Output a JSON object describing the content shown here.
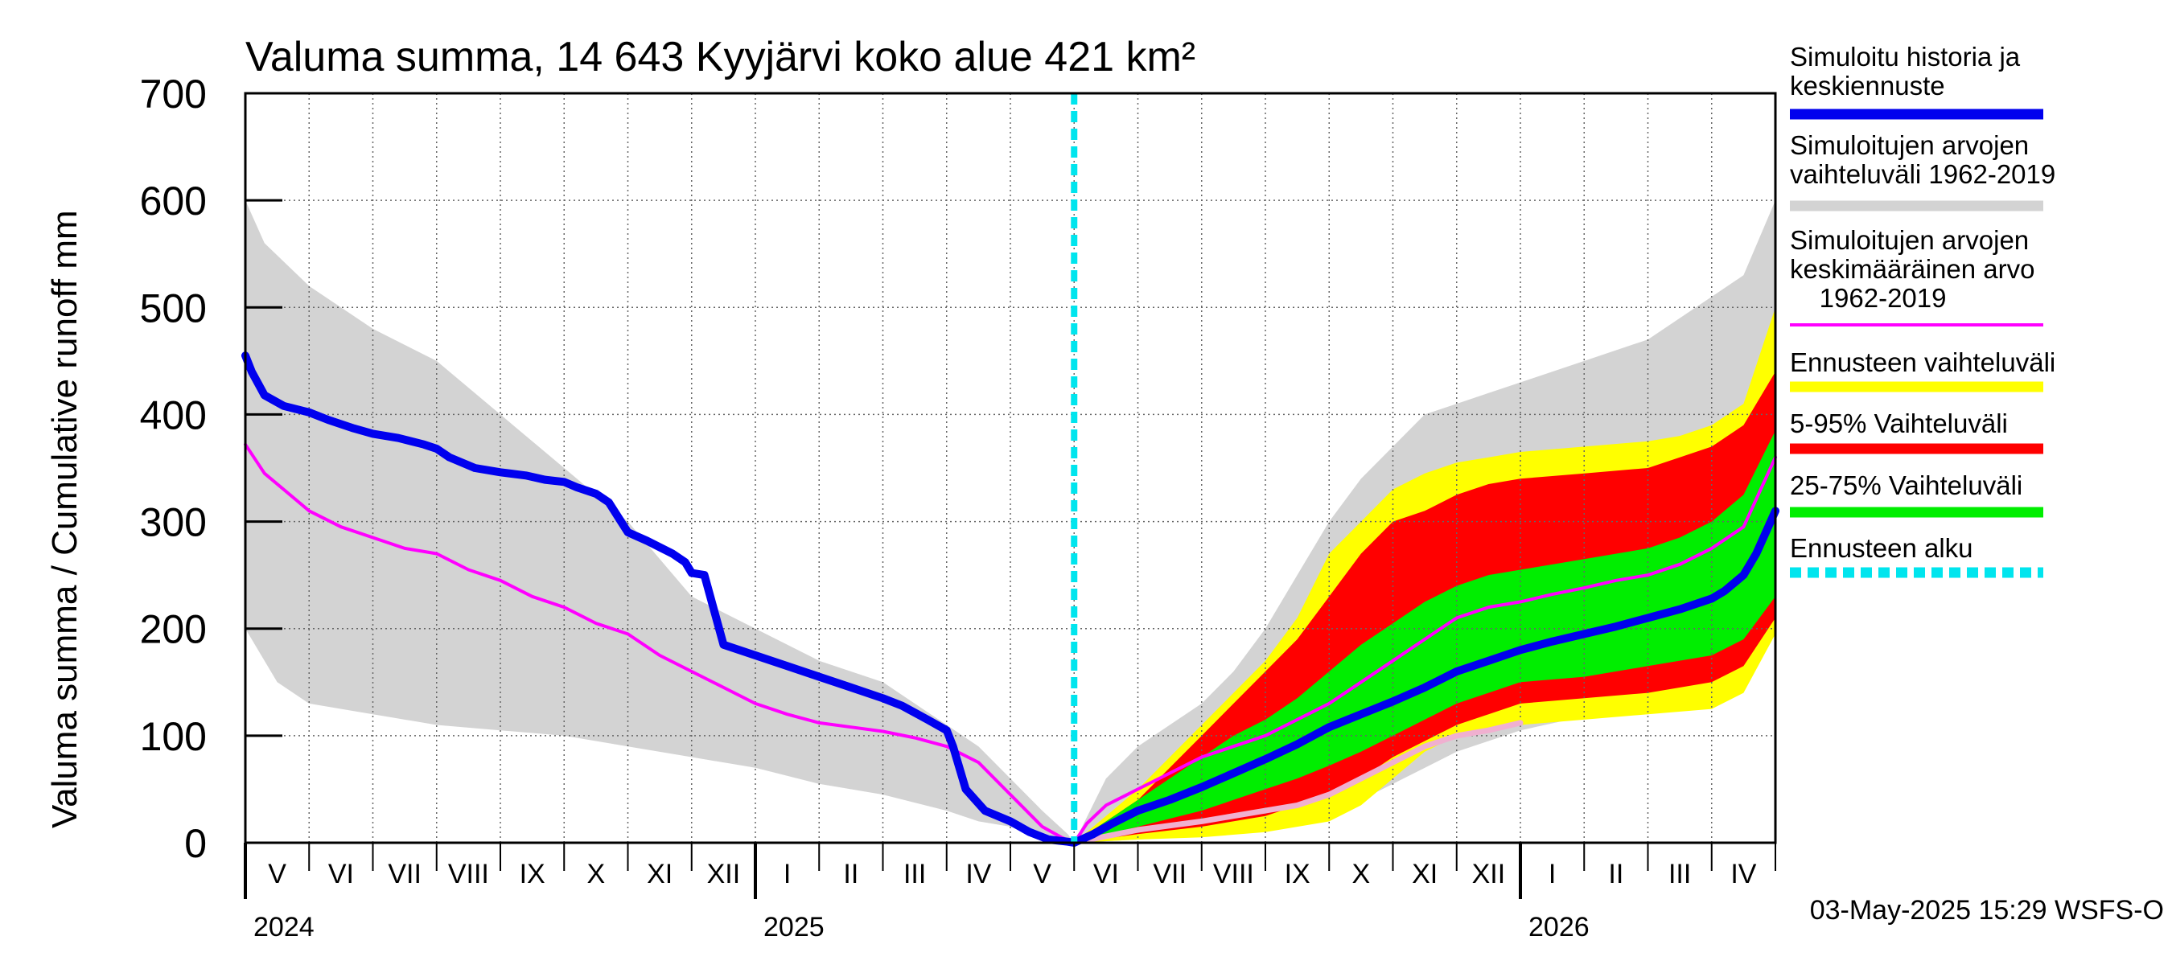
{
  "chart_data": {
    "type": "area",
    "title": "Valuma summa, 14 643 Kyyjärvi koko alue 421 km²",
    "ylabel": "Valuma summa / Cumulative runoff    mm",
    "xlabel": "",
    "ylim": [
      0,
      700
    ],
    "yticks": [
      0,
      100,
      200,
      300,
      400,
      500,
      600,
      700
    ],
    "grid": true,
    "legend_position": "right",
    "x_unit": "months since 2024-04-01",
    "xlim": [
      0,
      24
    ],
    "forecast_start": 13.0,
    "month_labels": [
      {
        "label": "V",
        "x": 0.5
      },
      {
        "label": "VI",
        "x": 1.5
      },
      {
        "label": "VII",
        "x": 2.5
      },
      {
        "label": "VIII",
        "x": 3.5
      },
      {
        "label": "IX",
        "x": 4.5
      },
      {
        "label": "X",
        "x": 5.5
      },
      {
        "label": "XI",
        "x": 6.5
      },
      {
        "label": "XII",
        "x": 7.5
      },
      {
        "label": "I",
        "x": 8.5
      },
      {
        "label": "II",
        "x": 9.5
      },
      {
        "label": "III",
        "x": 10.5
      },
      {
        "label": "IV",
        "x": 11.5
      },
      {
        "label": "V",
        "x": 12.5
      },
      {
        "label": "VI",
        "x": 13.5
      },
      {
        "label": "VII",
        "x": 14.5
      },
      {
        "label": "VIII",
        "x": 15.5
      },
      {
        "label": "IX",
        "x": 16.5
      },
      {
        "label": "X",
        "x": 17.5
      },
      {
        "label": "XI",
        "x": 18.5
      },
      {
        "label": "XII",
        "x": 19.5
      },
      {
        "label": "I",
        "x": 20.5
      },
      {
        "label": "II",
        "x": 21.5
      },
      {
        "label": "III",
        "x": 22.5
      },
      {
        "label": "IV",
        "x": 23.5
      }
    ],
    "year_labels": [
      {
        "label": "2024",
        "x": 0.0
      },
      {
        "label": "2025",
        "x": 8.0
      },
      {
        "label": "2026",
        "x": 20.0
      }
    ],
    "legend": [
      {
        "key": "history",
        "label": "Simuloitu historia ja keskiennuste",
        "color": "#0000ee"
      },
      {
        "key": "sim_range",
        "label": "Simuloitujen arvojen vaihteluväli 1962-2019",
        "color": "#d3d3d3"
      },
      {
        "key": "sim_mean",
        "label": "Simuloitujen arvojen keskimääräinen arvo    1962-2019",
        "color": "#ff00ff"
      },
      {
        "key": "fc_range",
        "label": "Ennusteen vaihteluväli",
        "color": "#ffff00"
      },
      {
        "key": "p5_95",
        "label": "5-95% Vaihteluväli",
        "color": "#ff0000"
      },
      {
        "key": "p25_75",
        "label": "25-75% Vaihteluväli",
        "color": "#00ee00"
      },
      {
        "key": "fc_start",
        "label": "Ennusteen alku",
        "color": "#00e5ee"
      }
    ],
    "series": [
      {
        "name": "Simuloitujen arvojen vaihteluväli 1962-2019 (ylä)",
        "x": [
          0,
          0.3,
          1,
          2,
          3,
          4,
          5,
          6,
          7,
          8,
          9,
          10,
          10.5,
          11,
          11.5,
          12,
          12.5,
          12.9,
          13,
          13.5,
          14,
          14.5,
          15,
          15.5,
          16,
          16.5,
          17,
          17.5,
          18,
          18.5,
          19,
          19.5,
          20,
          21,
          22,
          22.5,
          23,
          23.5,
          24
        ],
        "values": [
          600,
          560,
          520,
          480,
          450,
          400,
          350,
          300,
          230,
          200,
          170,
          150,
          130,
          110,
          90,
          60,
          30,
          8,
          0,
          60,
          90,
          110,
          130,
          160,
          200,
          250,
          300,
          340,
          370,
          400,
          410,
          420,
          430,
          450,
          470,
          490,
          510,
          530,
          600
        ]
      },
      {
        "name": "Simuloitujen arvojen vaihteluväli 1962-2019 (ala)",
        "x": [
          0,
          0.5,
          1,
          2,
          3,
          4,
          5,
          6,
          7,
          8,
          9,
          10,
          11,
          11.5,
          12,
          12.5,
          12.9,
          13,
          14,
          15,
          16,
          17,
          18,
          19,
          20,
          21,
          22,
          22.5,
          23,
          23.5,
          24
        ],
        "values": [
          200,
          150,
          130,
          120,
          110,
          105,
          100,
          90,
          80,
          70,
          55,
          45,
          30,
          20,
          15,
          8,
          2,
          0,
          3,
          7,
          12,
          25,
          55,
          85,
          105,
          118,
          125,
          128,
          135,
          150,
          200
        ]
      },
      {
        "name": "Ennusteen vaihteluväli (ylä)",
        "x": [
          13,
          13.5,
          14,
          14.5,
          15,
          15.5,
          16,
          16.5,
          17,
          17.5,
          18,
          18.5,
          19,
          19.5,
          20,
          21,
          22,
          22.5,
          23,
          23.5,
          24
        ],
        "values": [
          0,
          25,
          50,
          80,
          110,
          140,
          170,
          210,
          270,
          300,
          330,
          345,
          355,
          360,
          365,
          370,
          375,
          380,
          390,
          410,
          500
        ]
      },
      {
        "name": "Ennusteen vaihteluväli (ala)",
        "x": [
          13,
          14,
          15,
          16,
          17,
          17.5,
          18,
          18.5,
          19,
          20,
          21,
          22,
          23,
          23.5,
          24
        ],
        "values": [
          0,
          3,
          5,
          10,
          20,
          35,
          60,
          85,
          100,
          110,
          115,
          120,
          125,
          140,
          195
        ]
      },
      {
        "name": "5-95% Vaihteluväli (ylä)",
        "x": [
          13,
          13.5,
          14,
          14.5,
          15,
          15.5,
          16,
          16.5,
          17,
          17.5,
          18,
          18.5,
          19,
          19.5,
          20,
          21,
          22,
          22.5,
          23,
          23.5,
          24
        ],
        "values": [
          0,
          20,
          40,
          70,
          100,
          130,
          160,
          190,
          230,
          270,
          300,
          310,
          325,
          335,
          340,
          345,
          350,
          360,
          370,
          390,
          440
        ]
      },
      {
        "name": "5-95% Vaihteluväli (ala)",
        "x": [
          13,
          14,
          15,
          16,
          16.5,
          17,
          17.5,
          18,
          18.5,
          19,
          19.5,
          20,
          21,
          22,
          23,
          23.5,
          24
        ],
        "values": [
          0,
          8,
          15,
          25,
          35,
          45,
          60,
          80,
          95,
          110,
          120,
          130,
          135,
          140,
          150,
          165,
          210
        ]
      },
      {
        "name": "25-75% Vaihteluväli (ylä)",
        "x": [
          13,
          13.5,
          14,
          14.5,
          15,
          15.5,
          16,
          16.5,
          17,
          17.5,
          18,
          18.5,
          19,
          19.5,
          20,
          21,
          22,
          22.5,
          23,
          23.5,
          24
        ],
        "values": [
          0,
          20,
          40,
          60,
          80,
          100,
          115,
          135,
          160,
          185,
          205,
          225,
          240,
          250,
          255,
          265,
          275,
          285,
          300,
          325,
          385
        ]
      },
      {
        "name": "25-75% Vaihteluväli (ala)",
        "x": [
          13,
          14,
          15,
          16,
          16.5,
          17,
          17.5,
          18,
          18.5,
          19,
          19.5,
          20,
          21,
          22,
          23,
          23.5,
          24
        ],
        "values": [
          0,
          15,
          30,
          50,
          60,
          72,
          85,
          100,
          115,
          130,
          140,
          150,
          155,
          165,
          175,
          190,
          230
        ]
      },
      {
        "name": "Simuloitujen arvojen keskimääräinen arvo 1962-2019",
        "x": [
          0,
          0.3,
          0.6,
          1,
          1.5,
          2,
          2.5,
          3,
          3.5,
          4,
          4.5,
          5,
          5.5,
          6,
          6.5,
          7,
          7.5,
          8,
          8.5,
          9,
          9.5,
          10,
          10.5,
          11,
          11.5,
          12,
          12.5,
          12.8,
          13,
          13.2,
          13.5,
          14,
          14.5,
          15,
          15.5,
          16,
          16.5,
          17,
          17.5,
          18,
          18.5,
          19,
          19.5,
          20,
          20.5,
          21,
          21.5,
          22,
          22.5,
          23,
          23.5,
          24
        ],
        "values": [
          372,
          345,
          330,
          310,
          295,
          285,
          275,
          270,
          255,
          245,
          230,
          220,
          205,
          195,
          175,
          160,
          145,
          130,
          120,
          112,
          108,
          104,
          98,
          90,
          75,
          45,
          15,
          5,
          0,
          18,
          35,
          50,
          65,
          80,
          90,
          100,
          115,
          130,
          150,
          170,
          190,
          210,
          220,
          225,
          232,
          238,
          245,
          250,
          260,
          275,
          295,
          360
        ]
      },
      {
        "name": "Simuloitu historia ja keskiennuste",
        "x": [
          0,
          0.1,
          0.3,
          0.6,
          1,
          1.3,
          1.7,
          2,
          2.4,
          2.8,
          3,
          3.2,
          3.6,
          4,
          4.4,
          4.7,
          5,
          5.2,
          5.5,
          5.7,
          6,
          6.3,
          6.7,
          6.9,
          7,
          7.2,
          7.5,
          8,
          8.5,
          9,
          9.5,
          10,
          10.3,
          10.7,
          11,
          11.1,
          11.3,
          11.6,
          12,
          12.3,
          12.6,
          12.9,
          13,
          13.3,
          13.6,
          14,
          14.5,
          15,
          15.5,
          16,
          16.5,
          17,
          17.5,
          18,
          18.5,
          19,
          19.5,
          20,
          20.5,
          21,
          21.5,
          22,
          22.5,
          23,
          23.2,
          23.5,
          23.7,
          23.85,
          24
        ],
        "values": [
          455,
          440,
          418,
          408,
          402,
          395,
          387,
          382,
          378,
          372,
          368,
          360,
          350,
          346,
          343,
          339,
          337,
          332,
          326,
          318,
          290,
          282,
          270,
          262,
          252,
          250,
          185,
          175,
          165,
          155,
          145,
          135,
          128,
          115,
          105,
          90,
          50,
          30,
          20,
          10,
          3,
          1,
          0,
          8,
          18,
          30,
          40,
          52,
          65,
          78,
          92,
          108,
          120,
          132,
          145,
          160,
          170,
          180,
          188,
          195,
          202,
          210,
          218,
          228,
          235,
          250,
          270,
          290,
          310
        ]
      }
    ],
    "extra_series": [
      {
        "name": "Pale lower median",
        "color": "#f0b0d0",
        "x": [
          13,
          14,
          15,
          15.5,
          16,
          16.5,
          17,
          17.5,
          18,
          18.5,
          19,
          19.5,
          20
        ],
        "values": [
          0,
          12,
          20,
          25,
          30,
          35,
          45,
          60,
          75,
          90,
          100,
          105,
          112
        ]
      }
    ],
    "timestamp": "03-May-2025 15:29 WSFS-O"
  }
}
